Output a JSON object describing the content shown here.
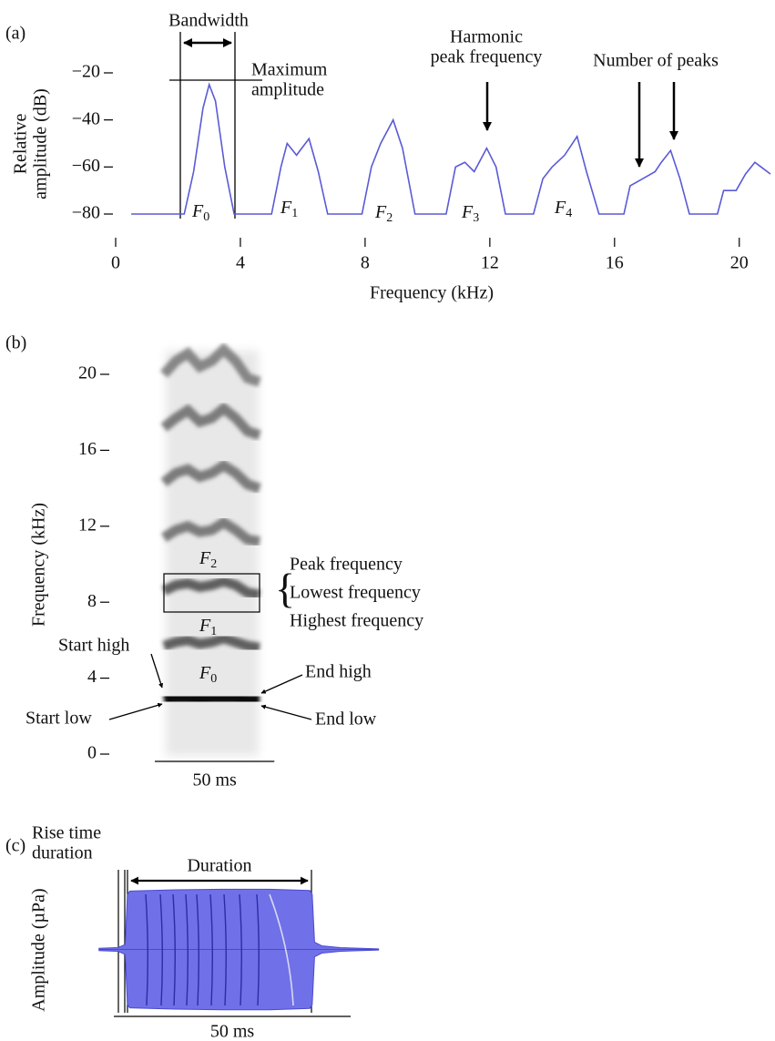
{
  "chart_data": [
    {
      "type": "line",
      "panel_label": "(a)",
      "y_label": [
        "Relative",
        "amplitude (dB)"
      ],
      "x_label": "Frequency (kHz)",
      "x": [
        0.5,
        2.2,
        2.5,
        2.8,
        3.0,
        3.2,
        3.5,
        3.8,
        5.0,
        5.3,
        5.5,
        5.8,
        6.2,
        6.5,
        6.8,
        7.9,
        8.2,
        8.5,
        8.9,
        9.2,
        9.6,
        10.6,
        10.9,
        11.2,
        11.5,
        11.9,
        12.2,
        12.5,
        13.4,
        13.7,
        14.0,
        14.4,
        14.8,
        15.1,
        15.5,
        16.3,
        16.5,
        16.9,
        17.3,
        17.5,
        17.8,
        18.1,
        18.4,
        19.3,
        19.5,
        19.9,
        20.2,
        20.5,
        20.7,
        21.0
      ],
      "values": [
        -80,
        -80,
        -62,
        -35,
        -25,
        -32,
        -60,
        -80,
        -80,
        -60,
        -50,
        -55,
        -48,
        -62,
        -80,
        -80,
        -60,
        -50,
        -40,
        -52,
        -80,
        -80,
        -60,
        -58,
        -62,
        -52,
        -60,
        -80,
        -80,
        -65,
        -60,
        -55,
        -47,
        -62,
        -80,
        -80,
        -68,
        -65,
        -62,
        -58,
        -53,
        -65,
        -80,
        -80,
        -70,
        -70,
        -63,
        -58,
        -60,
        -63
      ],
      "color": "#5a5ad6",
      "xlim": [
        0,
        21
      ],
      "ylim": [
        -80,
        -20
      ],
      "xticks": [
        0,
        4,
        8,
        12,
        16,
        20
      ],
      "yticks": [
        {
          "value": -80,
          "label": "−80"
        },
        {
          "value": -60,
          "label": "−60"
        },
        {
          "value": -40,
          "label": "−40"
        },
        {
          "value": -20,
          "label": "−20"
        }
      ],
      "annotations": {
        "bandwidth": "Bandwidth",
        "max_amplitude": [
          "Maximum",
          "amplitude"
        ],
        "harmonic_peak": [
          "Harmonic",
          "peak frequency"
        ],
        "number_of_peaks": "Number of peaks"
      },
      "harmonic_labels": [
        {
          "base": "F",
          "sub": "0"
        },
        {
          "base": "F",
          "sub": "1"
        },
        {
          "base": "F",
          "sub": "2"
        },
        {
          "base": "F",
          "sub": "3"
        },
        {
          "base": "F",
          "sub": "4"
        }
      ]
    },
    {
      "type": "spectrogram",
      "panel_label": "(b)",
      "y_label": "Frequency (kHz)",
      "x": [
        0,
        5,
        10,
        15,
        20,
        25,
        30,
        35,
        40
      ],
      "series": [
        {
          "color": "#000000",
          "values": [
            2.9,
            3.0,
            3.0,
            2.9,
            3.0,
            3.0,
            3.0,
            2.8,
            2.8
          ]
        },
        {
          "color": "#333333",
          "values": [
            5.7,
            5.9,
            6.0,
            5.8,
            5.9,
            6.1,
            5.9,
            5.7,
            5.6
          ]
        },
        {
          "color": "#333333",
          "values": [
            8.6,
            8.9,
            9.0,
            8.8,
            8.9,
            9.1,
            8.9,
            8.5,
            8.4
          ]
        },
        {
          "color": "#555555",
          "values": [
            11.4,
            11.8,
            12.0,
            11.7,
            11.8,
            12.2,
            11.8,
            11.3,
            11.2
          ]
        },
        {
          "color": "#555555",
          "values": [
            14.3,
            14.8,
            15.0,
            14.6,
            14.8,
            15.2,
            14.8,
            14.2,
            14.0
          ]
        },
        {
          "color": "#555555",
          "values": [
            17.2,
            17.7,
            18.1,
            17.5,
            17.7,
            18.2,
            17.7,
            17.0,
            16.8
          ]
        },
        {
          "color": "#666666",
          "values": [
            20.0,
            20.7,
            21.1,
            20.4,
            20.7,
            21.3,
            20.7,
            19.8,
            19.6
          ]
        }
      ],
      "xlim": [
        0,
        40
      ],
      "ylim": [
        0,
        22
      ],
      "yticks": [
        0,
        4,
        8,
        12,
        16,
        20
      ],
      "scale_bar": {
        "value": 50,
        "label": "50 ms"
      },
      "harmonic_labels": [
        {
          "base": "F",
          "sub": "0"
        },
        {
          "base": "F",
          "sub": "1"
        },
        {
          "base": "F",
          "sub": "2"
        }
      ],
      "measures": [
        "Peak frequency",
        "Lowest frequency",
        "Highest frequency"
      ],
      "contour_labels": {
        "start_high": "Start high",
        "start_low": "Start low",
        "end_high": "End high",
        "end_low": "End low"
      }
    },
    {
      "type": "waveform",
      "panel_label": "(c)",
      "y_label": "Amplitude (µPa)",
      "x": [
        -6,
        -2,
        -0.5,
        0,
        0.5,
        10,
        20,
        30,
        38.5,
        39,
        39.5,
        41,
        45,
        53
      ],
      "values": [
        0.02,
        0.03,
        0.08,
        0.9,
        0.95,
        0.97,
        0.98,
        0.98,
        0.96,
        0.9,
        0.12,
        0.06,
        0.03,
        0.01
      ],
      "color": "#7070e8",
      "xlim": [
        -6,
        53
      ],
      "ylim": [
        -1,
        1
      ],
      "scale_bar": {
        "value": 50,
        "label": "50 ms"
      },
      "annotations": {
        "rise_time": [
          "Rise time",
          "duration"
        ],
        "duration": "Duration"
      }
    }
  ]
}
